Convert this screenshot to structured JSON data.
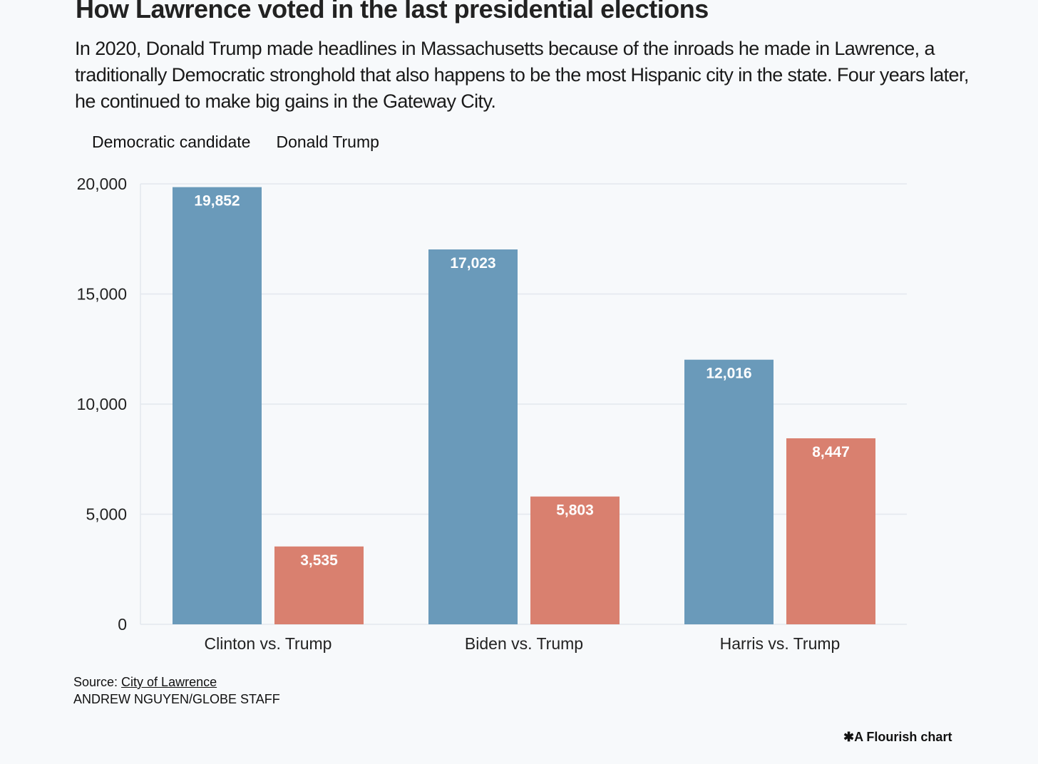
{
  "chart_data": {
    "type": "bar",
    "title": "How Lawrence voted in the last presidential elections",
    "subtitle": "In 2020, Donald Trump made headlines in Massachusetts because of the inroads he made in Lawrence, a traditionally Democratic stronghold that also happens to be the most Hispanic city in the state. Four years later, he continued to make big gains in the Gateway City.",
    "categories": [
      "Clinton vs. Trump",
      "Biden vs. Trump",
      "Harris vs. Trump"
    ],
    "series": [
      {
        "name": "Democratic candidate",
        "color": "#6a9aba",
        "values": [
          19852,
          17023,
          12016
        ],
        "labels": [
          "19,852",
          "17,023",
          "12,016"
        ]
      },
      {
        "name": "Donald Trump",
        "color": "#d9806f",
        "values": [
          3535,
          5803,
          8447
        ],
        "labels": [
          "3,535",
          "5,803",
          "8,447"
        ]
      }
    ],
    "yticks": [
      0,
      5000,
      10000,
      15000,
      20000
    ],
    "ytick_labels": [
      "0",
      "5,000",
      "10,000",
      "15,000",
      "20,000"
    ],
    "ylim": [
      0,
      20000
    ],
    "xlabel": "",
    "ylabel": "",
    "grid": true,
    "legend_placement": "top-left"
  },
  "footer": {
    "source_prefix": "Source: ",
    "source_link": "City of Lawrence",
    "credit": "ANDREW NGUYEN/GLOBE STAFF",
    "flourish": "A Flourish chart"
  }
}
